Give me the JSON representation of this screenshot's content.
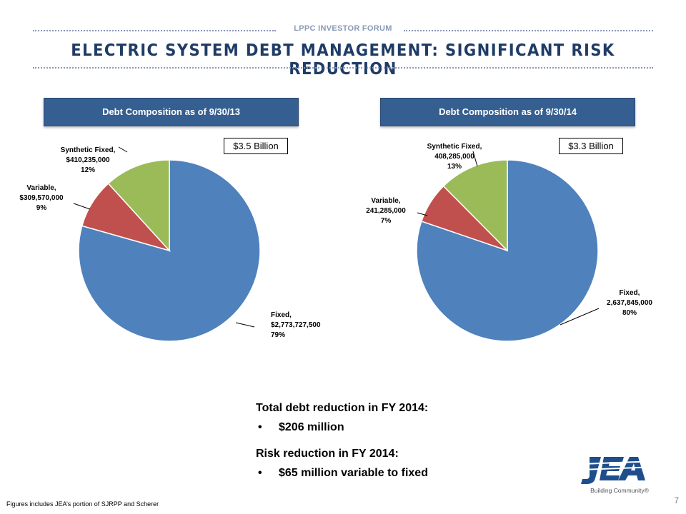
{
  "header": {
    "forum_label": "LPPC INVESTOR FORUM",
    "title": "ELECTRIC SYSTEM DEBT MANAGEMENT: SIGNIFICANT RISK REDUCTION"
  },
  "colors": {
    "fixed": "#4f81bd",
    "variable": "#c0504d",
    "synthetic_fixed": "#9bbb59",
    "header_blue": "#365f91",
    "title_blue": "#1f3c66"
  },
  "chart_data": [
    {
      "type": "pie",
      "title": "Debt Composition as of 9/30/13",
      "total_label": "$3.5 Billion",
      "slices": [
        {
          "name": "Fixed",
          "value": 2773727500,
          "percent": 79,
          "label_lines": [
            "Fixed,",
            "$2,773,727,500",
            "79%"
          ]
        },
        {
          "name": "Variable",
          "value": 309570000,
          "percent": 9,
          "label_lines": [
            "Variable,",
            "$309,570,000",
            "9%"
          ]
        },
        {
          "name": "Synthetic Fixed",
          "value": 410235000,
          "percent": 12,
          "label_lines": [
            "Synthetic Fixed,",
            "$410,235,000",
            "12%"
          ]
        }
      ]
    },
    {
      "type": "pie",
      "title": "Debt Composition as of 9/30/14",
      "total_label": "$3.3 Billion",
      "slices": [
        {
          "name": "Fixed",
          "value": 2637845000,
          "percent": 80,
          "label_lines": [
            "Fixed,",
            "2,637,845,000",
            "80%"
          ]
        },
        {
          "name": "Variable",
          "value": 241285000,
          "percent": 7,
          "label_lines": [
            "Variable,",
            "241,285,000",
            "7%"
          ]
        },
        {
          "name": "Synthetic Fixed",
          "value": 408285000,
          "percent": 13,
          "label_lines": [
            "Synthetic Fixed,",
            "408,285,000",
            "13%"
          ]
        }
      ]
    }
  ],
  "summary": {
    "debt_heading": "Total debt reduction in FY 2014:",
    "debt_bullet": "$206 million",
    "risk_heading": "Risk reduction in FY 2014:",
    "risk_bullet": "$65 million variable to fixed"
  },
  "footer": {
    "note": "Figures includes JEA’s portion of SJRPP and Scherer",
    "page_number": "7",
    "logo_text": "JEA",
    "logo_tagline": "Building Community®"
  }
}
